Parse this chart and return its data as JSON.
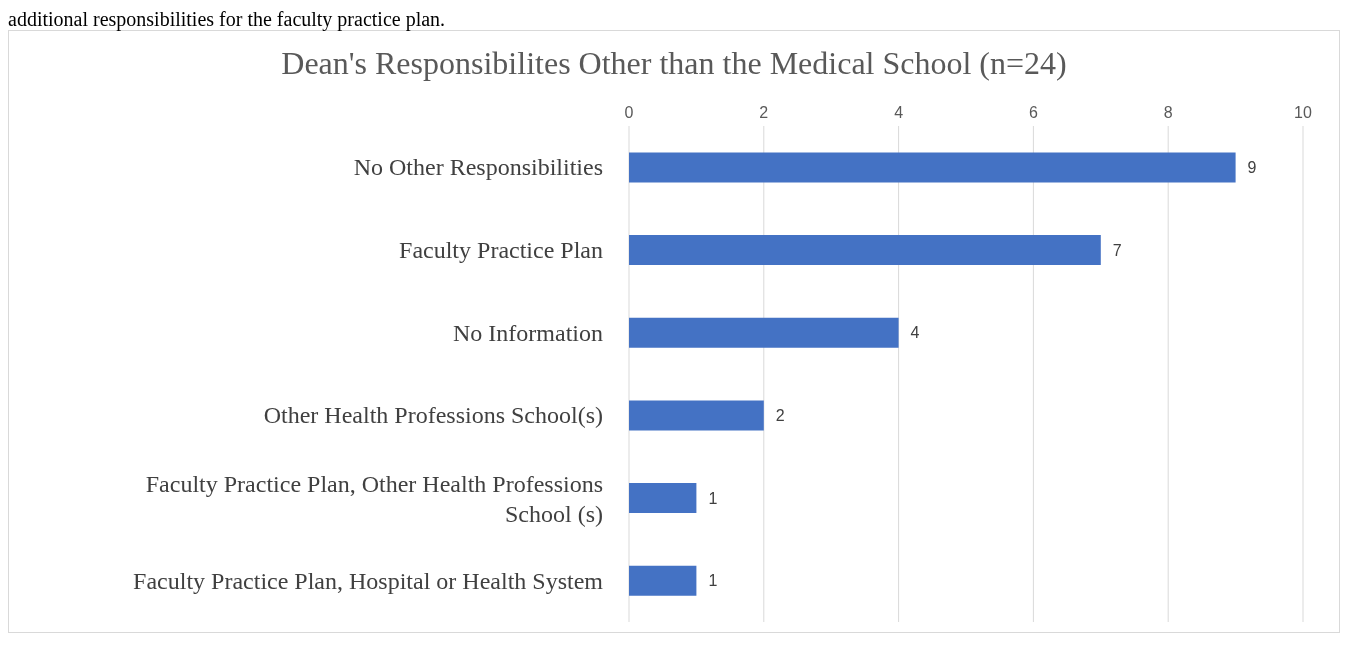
{
  "chart_data": {
    "type": "bar",
    "orientation": "horizontal",
    "title": "Dean's Responsibilites Other than the Medical School (n=24)",
    "annotations": [
      "additional responsibilities for the faculty practice plan."
    ],
    "categories": [
      "No Other Responsibilities",
      "Faculty Practice Plan",
      "No Information",
      "Other Health Professions School(s)",
      "Faculty Practice Plan, Other Health Professions School (s)",
      "Faculty Practice Plan, Hospital or Health System"
    ],
    "values": [
      9,
      7,
      4,
      2,
      1,
      1
    ],
    "color": "#4472c4",
    "xlim": [
      0,
      10
    ],
    "xticks": [
      0,
      2,
      4,
      6,
      8,
      10
    ],
    "grid": "x",
    "data_labels": true
  }
}
